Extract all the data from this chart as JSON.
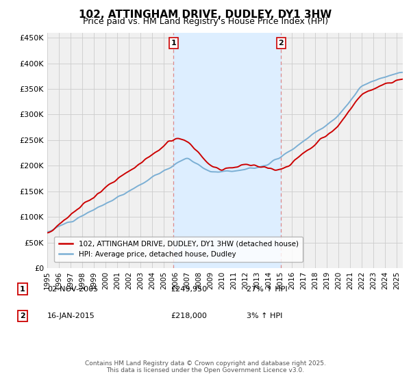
{
  "title": "102, ATTINGHAM DRIVE, DUDLEY, DY1 3HW",
  "subtitle": "Price paid vs. HM Land Registry's House Price Index (HPI)",
  "title_fontsize": 11,
  "subtitle_fontsize": 9,
  "ylabel_ticks": [
    "£0",
    "£50K",
    "£100K",
    "£150K",
    "£200K",
    "£250K",
    "£300K",
    "£350K",
    "£400K",
    "£450K"
  ],
  "ytick_values": [
    0,
    50000,
    100000,
    150000,
    200000,
    250000,
    300000,
    350000,
    400000,
    450000
  ],
  "ylim": [
    0,
    460000
  ],
  "xlim_start": 1995.0,
  "xlim_end": 2025.5,
  "sale1_x": 2005.84,
  "sale1_price": 249950,
  "sale2_x": 2015.05,
  "sale2_price": 218000,
  "sale1_text": "02-NOV-2005",
  "sale1_price_str": "£249,950",
  "sale1_hpi": "27% ↑ HPI",
  "sale2_text": "16-JAN-2015",
  "sale2_price_str": "£218,000",
  "sale2_hpi": "3% ↑ HPI",
  "line1_color": "#cc0000",
  "line2_color": "#7bafd4",
  "shade_color": "#ddeeff",
  "vline_color": "#dd8888",
  "legend1_label": "102, ATTINGHAM DRIVE, DUDLEY, DY1 3HW (detached house)",
  "legend2_label": "HPI: Average price, detached house, Dudley",
  "footer": "Contains HM Land Registry data © Crown copyright and database right 2025.\nThis data is licensed under the Open Government Licence v3.0.",
  "grid_color": "#cccccc",
  "bg_color": "#f0f0f0",
  "xticks": [
    1995,
    1996,
    1997,
    1998,
    1999,
    2000,
    2001,
    2002,
    2003,
    2004,
    2005,
    2006,
    2007,
    2008,
    2009,
    2010,
    2011,
    2012,
    2013,
    2014,
    2015,
    2016,
    2017,
    2018,
    2019,
    2020,
    2021,
    2022,
    2023,
    2024,
    2025
  ]
}
